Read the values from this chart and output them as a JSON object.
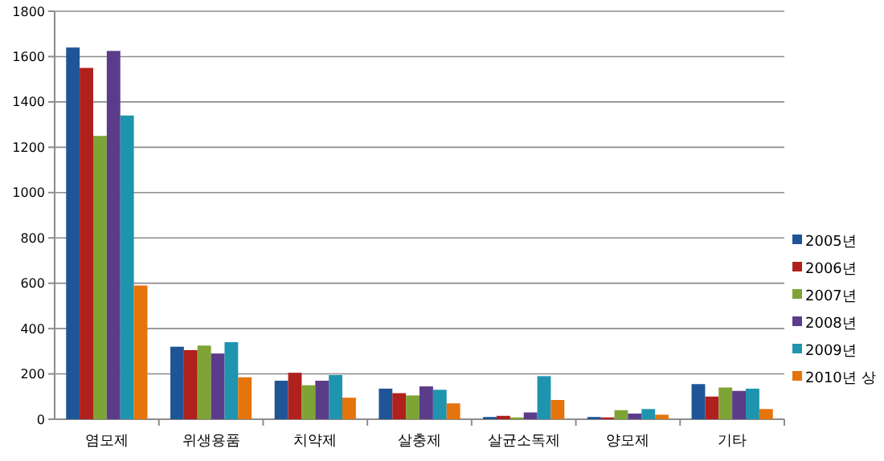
{
  "chart_data": {
    "type": "bar",
    "categories": [
      "염모제",
      "위생용품",
      "치약제",
      "살충제",
      "살균소독제",
      "양모제",
      "기타"
    ],
    "series": [
      {
        "name": "2005년",
        "color": "#1f5597",
        "values": [
          1640,
          320,
          170,
          135,
          10,
          10,
          155
        ]
      },
      {
        "name": "2006년",
        "color": "#b0201c",
        "values": [
          1550,
          305,
          205,
          115,
          15,
          8,
          100
        ]
      },
      {
        "name": "2007년",
        "color": "#7ea435",
        "values": [
          1250,
          325,
          150,
          105,
          8,
          40,
          140
        ]
      },
      {
        "name": "2008년",
        "color": "#5b3c8a",
        "values": [
          1625,
          290,
          170,
          145,
          30,
          25,
          125
        ]
      },
      {
        "name": "2009년",
        "color": "#1f94ae",
        "values": [
          1340,
          340,
          195,
          130,
          190,
          45,
          135
        ]
      },
      {
        "name": "2010년 상",
        "color": "#e5740d",
        "values": [
          590,
          185,
          95,
          70,
          85,
          20,
          45
        ]
      }
    ],
    "ylim": [
      0,
      1800
    ],
    "yticks": [
      0,
      200,
      400,
      600,
      800,
      1000,
      1200,
      1400,
      1600,
      1800
    ],
    "grid": "y",
    "legend": "right"
  }
}
